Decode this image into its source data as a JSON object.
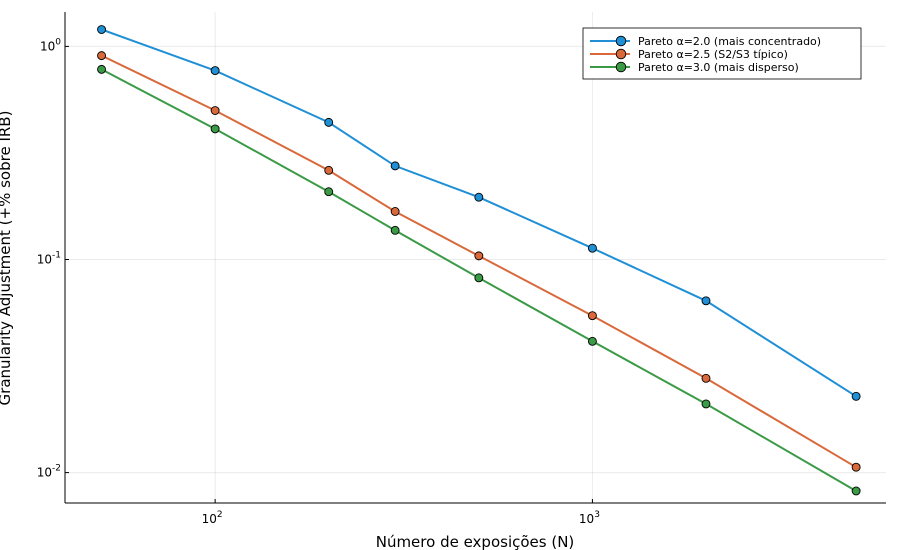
{
  "chart_data": {
    "type": "line",
    "title": "",
    "xlabel": "Número de exposições (N)",
    "ylabel": "Granularity Adjustment (+% sobre IRB)",
    "xscale": "log",
    "yscale": "log",
    "xlim": [
      40,
      6000
    ],
    "ylim": [
      0.0072,
      1.45
    ],
    "x_ticks": [
      {
        "value": 100,
        "base": "10",
        "exp": "2"
      },
      {
        "value": 1000,
        "base": "10",
        "exp": "3"
      }
    ],
    "y_ticks": [
      {
        "value": 0.01,
        "base": "10",
        "exp": "-2"
      },
      {
        "value": 0.1,
        "base": "10",
        "exp": "-1"
      },
      {
        "value": 1,
        "base": "10",
        "exp": "0"
      }
    ],
    "grid": true,
    "legend_position": "top-right",
    "x": [
      50,
      100,
      200,
      300,
      500,
      1000,
      2000,
      5000
    ],
    "series": [
      {
        "name": "Pareto α=2.0 (mais concentrado)",
        "color": "#1f8fd6",
        "values": [
          1.2,
          0.77,
          0.44,
          0.275,
          0.196,
          0.113,
          0.064,
          0.0228
        ]
      },
      {
        "name": "Pareto α=2.5 (S2/S3 típico)",
        "color": "#d9693b",
        "values": [
          0.905,
          0.5,
          0.262,
          0.168,
          0.104,
          0.0545,
          0.0277,
          0.0106
        ]
      },
      {
        "name": "Pareto α=3.0 (mais disperso)",
        "color": "#3a9a46",
        "values": [
          0.78,
          0.41,
          0.208,
          0.137,
          0.082,
          0.0413,
          0.021,
          0.0082
        ]
      }
    ]
  }
}
